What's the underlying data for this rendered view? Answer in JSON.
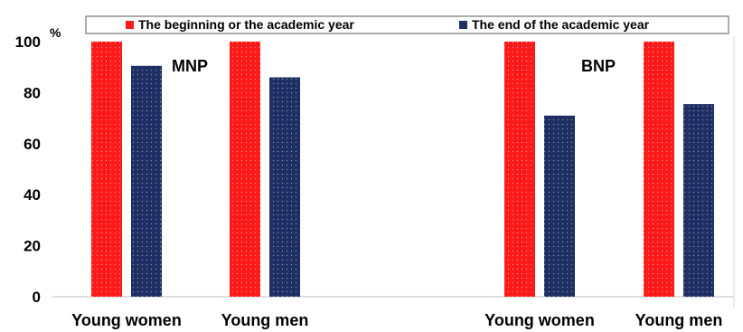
{
  "chart_data": {
    "type": "bar",
    "y_unit": "%",
    "ylim": [
      0,
      100
    ],
    "yticks": [
      0,
      20,
      40,
      60,
      80,
      100
    ],
    "grid": false,
    "legend_position": "top",
    "groups": [
      {
        "label": "MNP",
        "categories": [
          "Young women",
          "Young men"
        ]
      },
      {
        "label": "BNP",
        "categories": [
          "Young women",
          "Young men"
        ]
      }
    ],
    "categories": [
      "Young women",
      "Young men",
      "Young women",
      "Young men"
    ],
    "series": [
      {
        "name": "The beginning or the academic year",
        "color": "#ff1a1a",
        "values": [
          100,
          100,
          100,
          100
        ]
      },
      {
        "name": "The end of the academic year",
        "color": "#1f2f63",
        "values": [
          90.5,
          86,
          71,
          75.5
        ]
      }
    ]
  }
}
